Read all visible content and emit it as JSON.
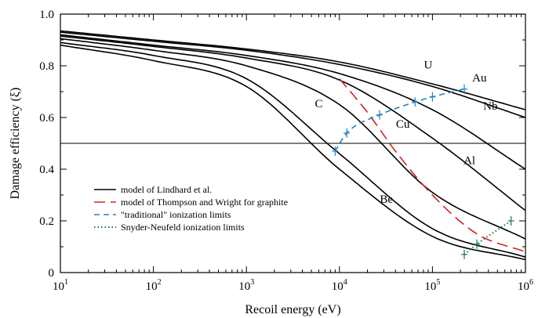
{
  "chart_data": {
    "type": "line",
    "xlabel": "Recoil energy (eV)",
    "ylabel": "Damage efficiency (ξ)",
    "xscale": "log",
    "xlim": [
      10,
      1000000
    ],
    "ylim": [
      0,
      1.0
    ],
    "x_ticks": [
      {
        "base": "10",
        "exp": "1"
      },
      {
        "base": "10",
        "exp": "2"
      },
      {
        "base": "10",
        "exp": "3"
      },
      {
        "base": "10",
        "exp": "4"
      },
      {
        "base": "10",
        "exp": "5"
      },
      {
        "base": "10",
        "exp": "6"
      }
    ],
    "y_ticks": [
      "0",
      "0.2",
      "0.4",
      "0.6",
      "0.8",
      "1.0"
    ],
    "y_tick_values": [
      0,
      0.2,
      0.4,
      0.6,
      0.8,
      1.0
    ],
    "grid": false,
    "reference_line": {
      "y": 0.5
    },
    "legend_position": "bottom-left",
    "legend": [
      {
        "label": "model of Lindhard et al.",
        "style": "solid",
        "color": "#000000"
      },
      {
        "label": "model of Thompson and Wright for graphite",
        "style": "long-dash",
        "color": "#d42020"
      },
      {
        "label": "\"traditional\" ionization limits",
        "style": "dash",
        "color": "#2080c0"
      },
      {
        "label": "Snyder-Neufeld ionization limits",
        "style": "dot",
        "color": "#1a7a4a"
      }
    ],
    "series": [
      {
        "name": "U",
        "group": "lindhard",
        "x": [
          10,
          100,
          1000,
          10000,
          100000,
          1000000
        ],
        "y": [
          0.935,
          0.9,
          0.865,
          0.815,
          0.73,
          0.63
        ]
      },
      {
        "name": "Au",
        "group": "lindhard",
        "x": [
          10,
          100,
          1000,
          10000,
          100000,
          1000000
        ],
        "y": [
          0.93,
          0.895,
          0.86,
          0.805,
          0.72,
          0.6
        ]
      },
      {
        "name": "Nb",
        "group": "lindhard",
        "x": [
          10,
          100,
          1000,
          10000,
          100000,
          1000000
        ],
        "y": [
          0.92,
          0.88,
          0.84,
          0.77,
          0.63,
          0.4
        ]
      },
      {
        "name": "Cu",
        "group": "lindhard",
        "x": [
          10,
          100,
          1000,
          10000,
          100000,
          1000000
        ],
        "y": [
          0.915,
          0.875,
          0.83,
          0.745,
          0.52,
          0.24
        ]
      },
      {
        "name": "Al",
        "group": "lindhard",
        "x": [
          10,
          100,
          1000,
          10000,
          100000,
          1000000
        ],
        "y": [
          0.905,
          0.86,
          0.8,
          0.65,
          0.31,
          0.13
        ]
      },
      {
        "name": "C",
        "group": "lindhard",
        "x": [
          10,
          100,
          1000,
          10000,
          100000,
          1000000
        ],
        "y": [
          0.89,
          0.84,
          0.75,
          0.46,
          0.17,
          0.06
        ]
      },
      {
        "name": "Be",
        "group": "lindhard",
        "x": [
          10,
          100,
          1000,
          10000,
          100000,
          1000000
        ],
        "y": [
          0.88,
          0.82,
          0.72,
          0.4,
          0.14,
          0.05
        ]
      },
      {
        "name": "",
        "group": "thompson",
        "x": [
          10000,
          20000,
          40000,
          100000,
          300000,
          1000000
        ],
        "y": [
          0.75,
          0.62,
          0.47,
          0.3,
          0.15,
          0.08
        ]
      },
      {
        "name": "",
        "group": "traditional",
        "x": [
          9000,
          12000,
          27000,
          65000,
          100000,
          220000
        ],
        "y": [
          0.47,
          0.54,
          0.61,
          0.66,
          0.68,
          0.71
        ]
      },
      {
        "name": "",
        "group": "snyder",
        "x": [
          220000,
          300000,
          700000
        ],
        "y": [
          0.07,
          0.11,
          0.2
        ]
      }
    ],
    "curve_labels": [
      {
        "text": "U",
        "x": 90000,
        "y": 0.79
      },
      {
        "text": "Au",
        "x": 320000,
        "y": 0.74
      },
      {
        "text": "Nb",
        "x": 420000,
        "y": 0.63
      },
      {
        "text": "Cu",
        "x": 48000,
        "y": 0.56
      },
      {
        "text": "Al",
        "x": 250000,
        "y": 0.42
      },
      {
        "text": "C",
        "x": 6000,
        "y": 0.64
      },
      {
        "text": "Be",
        "x": 32000,
        "y": 0.27
      }
    ]
  }
}
